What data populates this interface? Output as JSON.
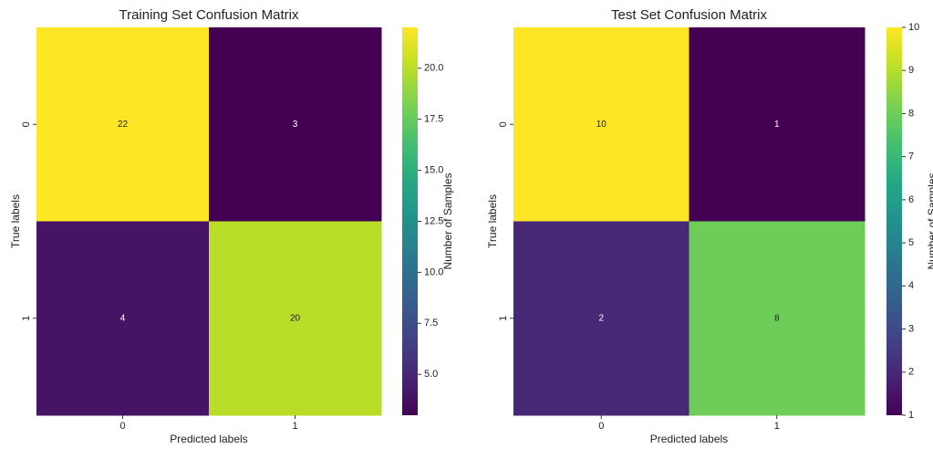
{
  "chart_data": [
    {
      "type": "heatmap",
      "title": "Training Set Confusion Matrix",
      "xlabel": "Predicted labels",
      "ylabel": "True labels",
      "x_categories": [
        "0",
        "1"
      ],
      "y_categories": [
        "0",
        "1"
      ],
      "values": [
        [
          22,
          3
        ],
        [
          4,
          20
        ]
      ],
      "colormap": "viridis",
      "colorbar_label": "Number of Samples",
      "clim": [
        3,
        22
      ],
      "cticks": [
        {
          "value": 5,
          "label": "5.0"
        },
        {
          "value": 7.5,
          "label": "7.5"
        },
        {
          "value": 10,
          "label": "10.0"
        },
        {
          "value": 12.5,
          "label": "12.5"
        },
        {
          "value": 15,
          "label": "15.0"
        },
        {
          "value": 17.5,
          "label": "17.5"
        },
        {
          "value": 20,
          "label": "20.0"
        }
      ]
    },
    {
      "type": "heatmap",
      "title": "Test Set Confusion Matrix",
      "xlabel": "Predicted labels",
      "ylabel": "True labels",
      "x_categories": [
        "0",
        "1"
      ],
      "y_categories": [
        "0",
        "1"
      ],
      "values": [
        [
          10,
          1
        ],
        [
          2,
          8
        ]
      ],
      "colormap": "viridis",
      "colorbar_label": "Number of Samples",
      "clim": [
        1,
        10
      ],
      "cticks": [
        1,
        2,
        3,
        4,
        5,
        6,
        7,
        8,
        9,
        10
      ]
    }
  ]
}
